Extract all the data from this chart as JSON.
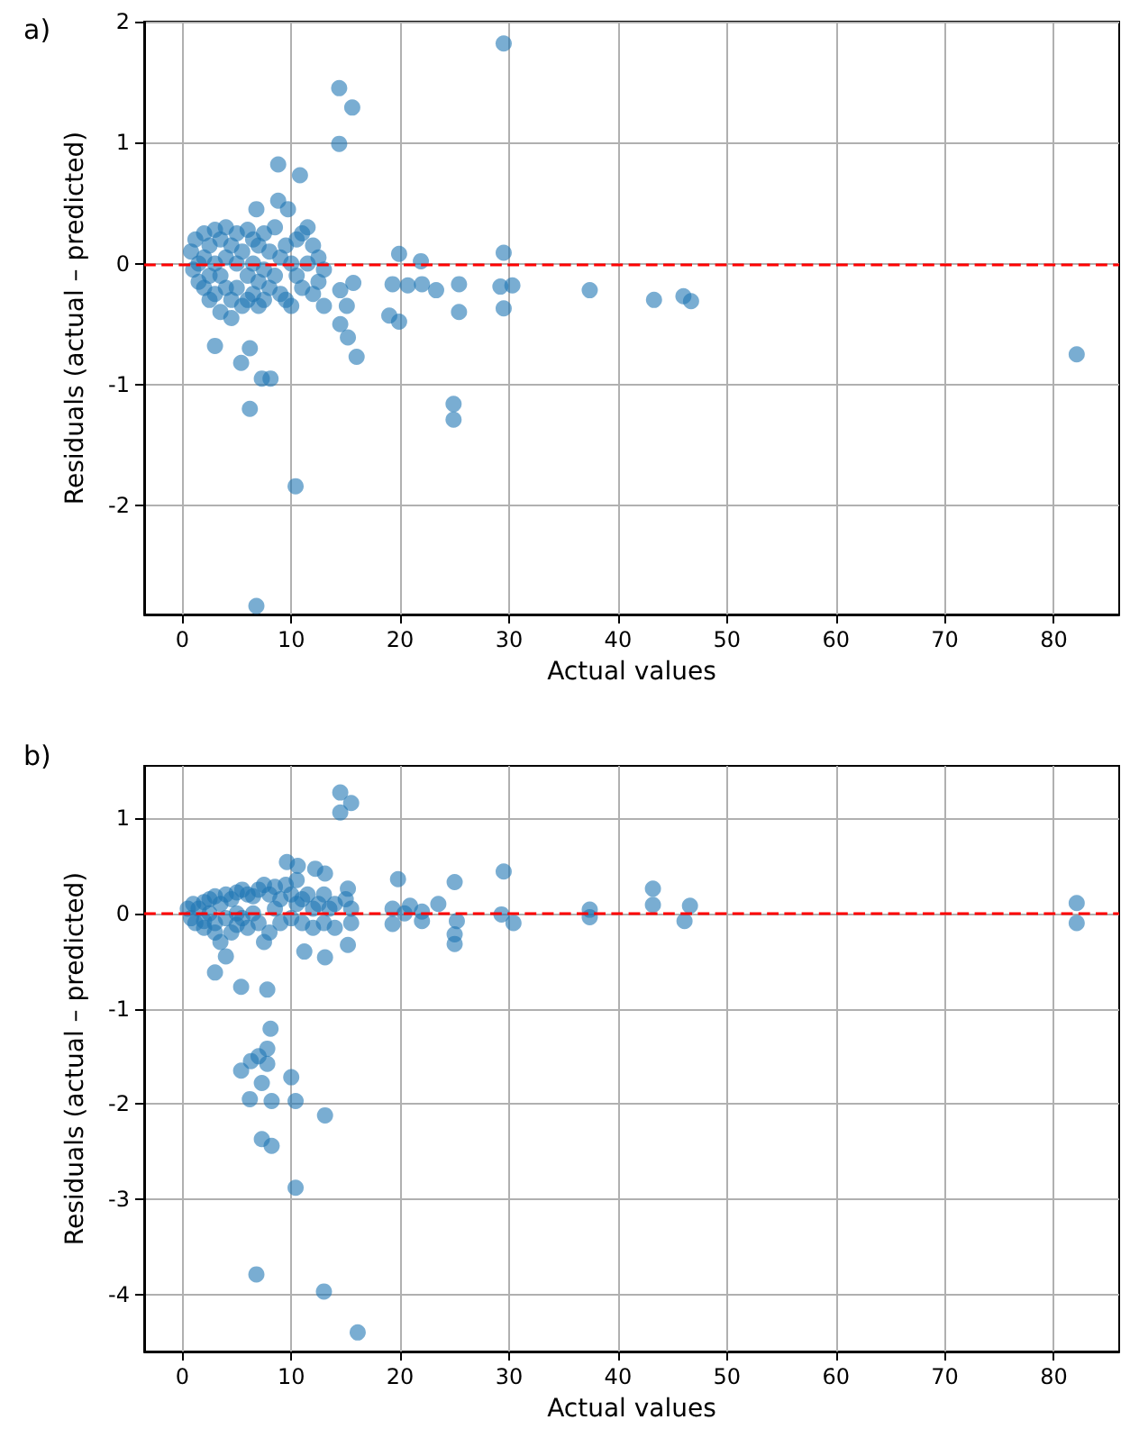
{
  "chart_data": [
    {
      "type": "scatter",
      "title": "a)",
      "xlabel": "Actual values",
      "ylabel": "Residuals (actual – predicted)",
      "color": "#1f77b4",
      "marker": "circle",
      "grid": true,
      "xlim": [
        -3.5,
        86
      ],
      "xticks": [
        0,
        10,
        20,
        30,
        40,
        50,
        60,
        70,
        80
      ],
      "ylim": [
        -2.9,
        2.0
      ],
      "yticks": [
        -2,
        -1,
        0,
        1,
        2
      ],
      "ref_lines": [
        {
          "axis": "y",
          "value": 0,
          "color": "#ff0000",
          "line_style": "dashed"
        }
      ],
      "x": [
        29.5,
        14.4,
        15.6,
        14.4,
        8.8,
        10.8,
        8.8,
        6.8,
        9.7,
        19.9,
        21.9,
        29.5,
        15.7,
        19.3,
        20.7,
        22,
        23.3,
        25.4,
        25.4,
        29.2,
        30.3,
        29.5,
        19,
        19.9,
        14.5,
        15.1,
        14.5,
        15.2,
        16,
        3,
        6.2,
        5.4,
        7.3,
        8.1,
        6.2,
        24.9,
        24.9,
        10.4,
        6.8,
        37.4,
        43.3,
        46,
        46.7,
        82.1,
        0.8,
        1,
        1.2,
        1.5,
        1.5,
        2,
        2,
        2,
        2.5,
        2.5,
        2.5,
        3,
        3,
        3,
        3.5,
        3.5,
        3.5,
        4,
        4,
        4,
        4.5,
        4.5,
        4.5,
        5,
        5,
        5,
        5.5,
        5.5,
        6,
        6,
        6,
        6.5,
        6.5,
        6.5,
        7,
        7,
        7,
        7.5,
        7.5,
        7.5,
        8,
        8,
        8.5,
        8.5,
        9,
        9,
        9.5,
        9.5,
        10,
        10,
        10.5,
        10.5,
        11,
        11,
        11.5,
        11.5,
        12,
        12,
        12.5,
        12.5,
        13,
        13
      ],
      "values": [
        1.82,
        1.45,
        1.29,
        0.99,
        0.82,
        0.73,
        0.52,
        0.45,
        0.45,
        0.08,
        0.02,
        0.09,
        -0.16,
        -0.17,
        -0.18,
        -0.17,
        -0.22,
        -0.17,
        -0.4,
        -0.19,
        -0.18,
        -0.37,
        -0.43,
        -0.48,
        -0.22,
        -0.35,
        -0.5,
        -0.61,
        -0.77,
        -0.68,
        -0.7,
        -0.82,
        -0.95,
        -0.95,
        -1.2,
        -1.16,
        -1.29,
        -1.84,
        -2.83,
        -0.22,
        -0.3,
        -0.27,
        -0.31,
        -0.75,
        0.1,
        -0.05,
        0.2,
        0,
        -0.15,
        0.25,
        0.05,
        -0.2,
        0.15,
        -0.1,
        -0.3,
        0.28,
        0,
        -0.25,
        0.2,
        -0.1,
        -0.4,
        0.3,
        0.05,
        -0.2,
        0.15,
        -0.3,
        -0.45,
        0.25,
        0,
        -0.2,
        0.1,
        -0.35,
        0.28,
        -0.1,
        -0.3,
        0.2,
        0,
        -0.25,
        0.15,
        -0.15,
        -0.35,
        0.25,
        -0.05,
        -0.3,
        0.1,
        -0.2,
        0.3,
        -0.1,
        0.05,
        -0.25,
        0.15,
        -0.3,
        0,
        -0.35,
        0.2,
        -0.1,
        0.25,
        -0.2,
        0.3,
        0,
        0.15,
        -0.25,
        0.05,
        -0.15,
        -0.05,
        -0.35
      ]
    },
    {
      "type": "scatter",
      "title": "b)",
      "xlabel": "Actual values",
      "ylabel": "Residuals (actual – predicted)",
      "color": "#1f77b4",
      "marker": "circle",
      "grid": true,
      "xlim": [
        -3.5,
        86
      ],
      "xticks": [
        0,
        10,
        20,
        30,
        40,
        50,
        60,
        70,
        80
      ],
      "ylim": [
        -4.6,
        1.55
      ],
      "yticks": [
        -4,
        -3,
        -2,
        -1,
        0,
        1
      ],
      "ref_lines": [
        {
          "axis": "y",
          "value": 0,
          "color": "#ff0000",
          "line_style": "dashed"
        }
      ],
      "x": [
        14.5,
        15.5,
        14.5,
        9.6,
        10.6,
        12.2,
        13.1,
        15.2,
        19.8,
        25,
        29.5,
        11.2,
        13.1,
        15.2,
        25,
        25,
        3,
        5.4,
        7.8,
        8.1,
        7.8,
        5.4,
        6.3,
        7,
        7.8,
        7.3,
        10,
        6.2,
        8.2,
        10.4,
        13.1,
        7.3,
        8.2,
        10.4,
        6.8,
        13,
        16.1,
        19.3,
        19.3,
        20.4,
        20.9,
        22,
        22,
        23.5,
        25.2,
        29.3,
        30.4,
        37.4,
        37.4,
        43.2,
        43.2,
        46.1,
        46.6,
        82.1,
        82.1,
        0.5,
        0.8,
        1,
        1.2,
        1.5,
        2,
        2,
        2,
        2.5,
        2.5,
        3,
        3,
        3,
        3.5,
        3.5,
        4,
        4,
        4,
        4.5,
        4.5,
        5,
        5,
        5,
        5.5,
        5.5,
        6,
        6,
        6.5,
        6.5,
        7,
        7,
        7.5,
        7.5,
        8,
        8,
        8.5,
        8.5,
        9,
        9,
        9.5,
        10,
        10,
        10.5,
        10.5,
        11,
        11,
        11.5,
        12,
        12,
        12.5,
        13,
        13,
        13.5,
        14,
        14,
        15,
        15.5,
        15.5
      ],
      "values": [
        1.27,
        1.16,
        1.06,
        0.54,
        0.5,
        0.47,
        0.42,
        0.26,
        0.36,
        0.33,
        0.44,
        -0.4,
        -0.46,
        -0.33,
        -0.32,
        -0.22,
        -0.62,
        -0.77,
        -0.8,
        -1.21,
        -1.42,
        -1.65,
        -1.55,
        -1.5,
        -1.58,
        -1.78,
        -1.72,
        -1.95,
        -1.97,
        -1.97,
        -2.12,
        -2.37,
        -2.44,
        -2.88,
        -3.79,
        -3.97,
        -4.4,
        -0.11,
        0.05,
        0,
        0.08,
        0.02,
        -0.08,
        0.1,
        -0.08,
        -0.01,
        -0.1,
        -0.04,
        0.04,
        0.26,
        0.09,
        -0.08,
        0.08,
        0.11,
        -0.1,
        0.05,
        -0.05,
        0.1,
        -0.1,
        0.05,
        0.12,
        -0.08,
        -0.15,
        0.15,
        0,
        0.18,
        -0.1,
        -0.2,
        0.1,
        -0.3,
        0.2,
        -0.05,
        -0.45,
        0.15,
        -0.2,
        0.22,
        0,
        -0.12,
        0.25,
        -0.05,
        0.2,
        -0.15,
        0.18,
        0,
        0.25,
        -0.1,
        0.3,
        -0.3,
        0.2,
        -0.2,
        0.28,
        0.05,
        0.15,
        -0.1,
        0.3,
        0.2,
        -0.05,
        0.35,
        0.1,
        0.15,
        -0.1,
        0.2,
        0.05,
        -0.15,
        0.1,
        0.2,
        -0.1,
        0.05,
        0.1,
        -0.15,
        0.15,
        0.05,
        -0.1
      ]
    }
  ]
}
